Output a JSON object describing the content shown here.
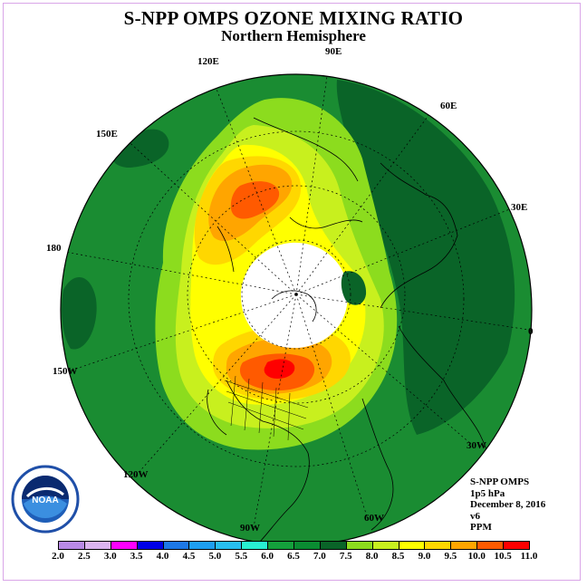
{
  "title": "S-NPP OMPS OZONE MIXING RATIO",
  "subtitle": "Northern Hemisphere",
  "longitude_labels": [
    {
      "text": "90E"
    },
    {
      "text": "60E"
    },
    {
      "text": "30E"
    },
    {
      "text": "0"
    },
    {
      "text": "30W"
    },
    {
      "text": "60W"
    },
    {
      "text": "90W"
    },
    {
      "text": "120W"
    },
    {
      "text": "150W"
    },
    {
      "text": "180"
    },
    {
      "text": "150E"
    },
    {
      "text": "120E"
    }
  ],
  "info": {
    "instrument": "S-NPP OMPS",
    "level": "1p5 hPa",
    "date": "December 8, 2016",
    "version": "v6",
    "units": "PPM"
  },
  "logo_text": "NOAA",
  "colorbar": {
    "labels": [
      "2.0",
      "2.5",
      "3.0",
      "3.5",
      "4.0",
      "4.5",
      "5.0",
      "5.5",
      "6.0",
      "6.5",
      "7.0",
      "7.5",
      "8.0",
      "8.5",
      "9.0",
      "9.5",
      "10.0",
      "10.5",
      "11.0"
    ],
    "colors": [
      "#b98ae6",
      "#dcb4f0",
      "#ff00ff",
      "#0000e6",
      "#1e78e6",
      "#1e9ef0",
      "#28bef0",
      "#28f0d2",
      "#14a03c",
      "#0a8c32",
      "#0a6428",
      "#8cdc1e",
      "#c8f01e",
      "#ffff00",
      "#ffd700",
      "#ffa500",
      "#ff5a00",
      "#ff0000",
      "#8b4513"
    ]
  },
  "colors": {
    "ozone_6_5": "#1a8c32",
    "ozone_7_0": "#0a6428",
    "ozone_7_5": "#8cdc1e",
    "ozone_8_0": "#c8f01e",
    "ozone_8_5": "#ffff00",
    "ozone_9_0": "#ffd700",
    "ozone_9_5": "#ffa500",
    "ozone_10_0": "#ff5a00",
    "ozone_10_5": "#ff0000",
    "polar_night": "#ffffff"
  }
}
